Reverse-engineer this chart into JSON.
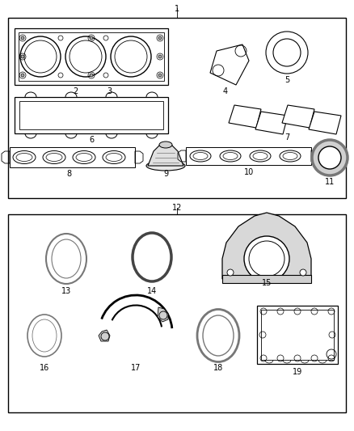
{
  "bg_color": "#ffffff",
  "lc": "#000000",
  "gc": "#777777",
  "lgc": "#aaaaaa",
  "dgc": "#444444",
  "fig_w": 4.38,
  "fig_h": 5.33,
  "dpi": 100
}
